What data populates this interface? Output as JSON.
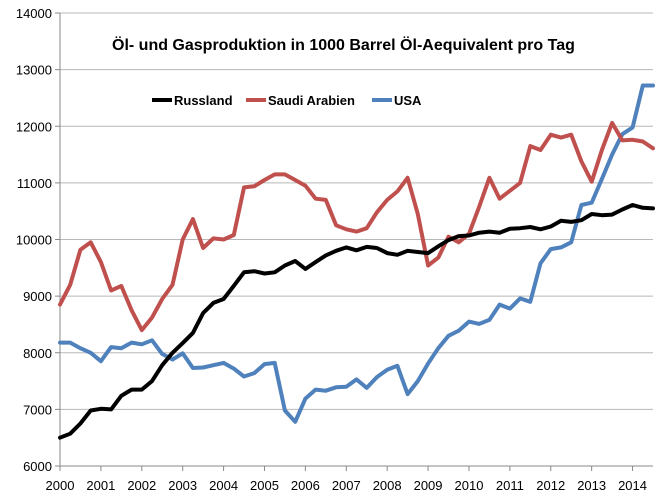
{
  "chart_data": {
    "type": "line",
    "title": "Öl- und Gasproduktion in 1000 Barrel Öl-Aequivalent pro Tag",
    "xlabel": "",
    "ylabel": "",
    "ylim": [
      6000,
      14000
    ],
    "xlim": [
      2000,
      2014.5
    ],
    "yticks": [
      6000,
      7000,
      8000,
      9000,
      10000,
      11000,
      12000,
      13000,
      14000
    ],
    "xticks": [
      2000,
      2001,
      2002,
      2003,
      2004,
      2005,
      2006,
      2007,
      2008,
      2009,
      2010,
      2011,
      2012,
      2013,
      2014
    ],
    "grid": "horizontal",
    "legend_position": "top-left",
    "series": [
      {
        "name": "Russland",
        "color": "#000000",
        "x": [
          2000.0,
          2000.25,
          2000.5,
          2000.75,
          2001.0,
          2001.25,
          2001.5,
          2001.75,
          2002.0,
          2002.25,
          2002.5,
          2002.75,
          2003.0,
          2003.25,
          2003.5,
          2003.75,
          2004.0,
          2004.25,
          2004.5,
          2004.75,
          2005.0,
          2005.25,
          2005.5,
          2005.75,
          2006.0,
          2006.25,
          2006.5,
          2006.75,
          2007.0,
          2007.25,
          2007.5,
          2007.75,
          2008.0,
          2008.25,
          2008.5,
          2008.75,
          2009.0,
          2009.25,
          2009.5,
          2009.75,
          2010.0,
          2010.25,
          2010.5,
          2010.75,
          2011.0,
          2011.25,
          2011.5,
          2011.75,
          2012.0,
          2012.25,
          2012.5,
          2012.75,
          2013.0,
          2013.25,
          2013.5,
          2013.75,
          2014.0,
          2014.25,
          2014.5
        ],
        "values": [
          6500,
          6570,
          6750,
          6980,
          7010,
          7000,
          7240,
          7350,
          7350,
          7500,
          7780,
          8000,
          8170,
          8350,
          8700,
          8880,
          8950,
          9180,
          9420,
          9440,
          9400,
          9420,
          9540,
          9620,
          9480,
          9600,
          9720,
          9800,
          9860,
          9810,
          9870,
          9850,
          9760,
          9730,
          9800,
          9780,
          9760,
          9880,
          9990,
          10060,
          10070,
          10120,
          10140,
          10120,
          10190,
          10200,
          10220,
          10180,
          10230,
          10330,
          10310,
          10340,
          10450,
          10430,
          10440,
          10530,
          10610,
          10560,
          10550
        ]
      },
      {
        "name": "Saudi Arabien",
        "color": "#c0504d",
        "x": [
          2000.0,
          2000.25,
          2000.5,
          2000.75,
          2001.0,
          2001.25,
          2001.5,
          2001.75,
          2002.0,
          2002.25,
          2002.5,
          2002.75,
          2003.0,
          2003.25,
          2003.5,
          2003.75,
          2004.0,
          2004.25,
          2004.5,
          2004.75,
          2005.0,
          2005.25,
          2005.5,
          2005.75,
          2006.0,
          2006.25,
          2006.5,
          2006.75,
          2007.0,
          2007.25,
          2007.5,
          2007.75,
          2008.0,
          2008.25,
          2008.5,
          2008.75,
          2009.0,
          2009.25,
          2009.5,
          2009.75,
          2010.0,
          2010.25,
          2010.5,
          2010.75,
          2011.0,
          2011.25,
          2011.5,
          2011.75,
          2012.0,
          2012.25,
          2012.5,
          2012.75,
          2013.0,
          2013.25,
          2013.5,
          2013.75,
          2014.0,
          2014.25,
          2014.5
        ],
        "values": [
          8850,
          9200,
          9820,
          9950,
          9600,
          9100,
          9180,
          8750,
          8400,
          8620,
          8950,
          9200,
          10000,
          10360,
          9850,
          10020,
          10000,
          10080,
          10920,
          10940,
          11050,
          11150,
          11150,
          11050,
          10950,
          10720,
          10700,
          10250,
          10180,
          10140,
          10200,
          10480,
          10700,
          10850,
          11090,
          10450,
          9540,
          9680,
          10050,
          9950,
          10100,
          10580,
          11090,
          10720,
          10860,
          11000,
          11650,
          11580,
          11850,
          11800,
          11850,
          11380,
          11020,
          11580,
          12060,
          11750,
          11760,
          11730,
          11610
        ]
      },
      {
        "name": "USA",
        "color": "#4f81bd",
        "x": [
          2000.0,
          2000.25,
          2000.5,
          2000.75,
          2001.0,
          2001.25,
          2001.5,
          2001.75,
          2002.0,
          2002.25,
          2002.5,
          2002.75,
          2003.0,
          2003.25,
          2003.5,
          2003.75,
          2004.0,
          2004.25,
          2004.5,
          2004.75,
          2005.0,
          2005.25,
          2005.5,
          2005.75,
          2006.0,
          2006.25,
          2006.5,
          2006.75,
          2007.0,
          2007.25,
          2007.5,
          2007.75,
          2008.0,
          2008.25,
          2008.5,
          2008.75,
          2009.0,
          2009.25,
          2009.5,
          2009.75,
          2010.0,
          2010.25,
          2010.5,
          2010.75,
          2011.0,
          2011.25,
          2011.5,
          2011.75,
          2012.0,
          2012.25,
          2012.5,
          2012.75,
          2013.0,
          2013.25,
          2013.5,
          2013.75,
          2014.0,
          2014.25,
          2014.5
        ],
        "values": [
          8180,
          8180,
          8080,
          8000,
          7850,
          8100,
          8080,
          8180,
          8150,
          8220,
          7980,
          7880,
          7990,
          7730,
          7740,
          7780,
          7820,
          7720,
          7580,
          7640,
          7800,
          7820,
          6980,
          6780,
          7190,
          7350,
          7330,
          7390,
          7400,
          7530,
          7380,
          7570,
          7700,
          7770,
          7270,
          7500,
          7810,
          8080,
          8300,
          8390,
          8550,
          8510,
          8580,
          8850,
          8780,
          8960,
          8900,
          9580,
          9830,
          9860,
          9950,
          10610,
          10650,
          11070,
          11500,
          11860,
          11980,
          12720,
          12720
        ]
      }
    ]
  }
}
